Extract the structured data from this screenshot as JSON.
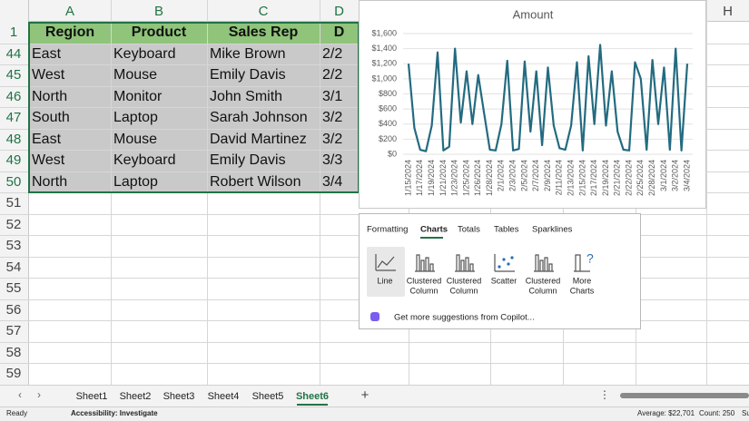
{
  "columns": [
    "A",
    "B",
    "C",
    "D",
    "H"
  ],
  "row_numbers": [
    "1",
    "44",
    "45",
    "46",
    "47",
    "48",
    "49",
    "50",
    "51",
    "52",
    "53",
    "54",
    "55",
    "56",
    "57",
    "58",
    "59"
  ],
  "table": {
    "header": [
      "Region",
      "Product",
      "Sales Rep",
      "D"
    ],
    "rows": [
      [
        "East",
        "Keyboard",
        "Mike Brown",
        "2/2"
      ],
      [
        "West",
        "Mouse",
        "Emily Davis",
        "2/2"
      ],
      [
        "North",
        "Monitor",
        "John Smith",
        "3/1"
      ],
      [
        "South",
        "Laptop",
        "Sarah Johnson",
        "3/2"
      ],
      [
        "East",
        "Mouse",
        "David Martinez",
        "3/2"
      ],
      [
        "West",
        "Keyboard",
        "Emily Davis",
        "3/3"
      ],
      [
        "North",
        "Laptop",
        "Robert Wilson",
        "3/4"
      ]
    ]
  },
  "chart": {
    "type": "line",
    "title": "Amount",
    "categories": [
      "1/15/2024",
      null,
      "1/17/2024",
      null,
      "1/19/2024",
      null,
      "1/21/2024",
      null,
      "1/23/2024",
      null,
      "1/25/2024",
      null,
      "1/26/2024",
      null,
      "1/28/2024",
      null,
      "2/1/2024",
      null,
      "2/3/2024",
      null,
      "2/5/2024",
      null,
      "2/7/2024",
      null,
      "2/9/2024",
      null,
      "2/11/2024",
      null,
      "2/13/2024",
      null,
      "2/15/2024",
      null,
      "2/17/2024",
      null,
      "2/19/2024",
      null,
      "2/21/2024",
      null,
      "2/22/2024",
      null,
      "2/25/2024",
      null,
      "2/28/2024",
      null,
      "3/1/2024",
      null,
      "3/2/2024",
      null,
      "3/4/2024"
    ],
    "values": [
      1200,
      350,
      60,
      40,
      380,
      1350,
      50,
      100,
      1400,
      420,
      1100,
      400,
      1050,
      550,
      60,
      50,
      400,
      1240,
      50,
      70,
      1230,
      300,
      1100,
      120,
      1150,
      380,
      80,
      60,
      380,
      1220,
      50,
      1300,
      400,
      1450,
      380,
      1100,
      300,
      60,
      50,
      1220,
      1000,
      60,
      1250,
      400,
      1150,
      60,
      1400,
      50,
      1200
    ],
    "color": "#236b80",
    "ylim": [
      0,
      1600
    ],
    "yticks": [
      {
        "value": 0,
        "label": "$0"
      },
      {
        "value": 200,
        "label": "$200"
      },
      {
        "value": 400,
        "label": "$400"
      },
      {
        "value": 600,
        "label": "$600"
      },
      {
        "value": 800,
        "label": "$800"
      },
      {
        "value": 1000,
        "label": "$1,000"
      },
      {
        "value": 1200,
        "label": "$1,200"
      },
      {
        "value": 1400,
        "label": "$1,400"
      },
      {
        "value": 1600,
        "label": "$1,600"
      }
    ],
    "grid": true
  },
  "quick_analysis": {
    "tabs": [
      "Formatting",
      "Charts",
      "Totals",
      "Tables",
      "Sparklines"
    ],
    "options": [
      [
        "Line"
      ],
      [
        "Clustered",
        "Column"
      ],
      [
        "Clustered",
        "Column"
      ],
      [
        "Scatter"
      ],
      [
        "Clustered",
        "Column"
      ],
      [
        "More",
        "Charts"
      ]
    ],
    "copilot": "Get more suggestions from Copilot..."
  },
  "sheet_tabs": [
    "Sheet1",
    "Sheet2",
    "Sheet3",
    "Sheet4",
    "Sheet5",
    "Sheet6"
  ],
  "status": {
    "ready": "Ready",
    "accessibility": "Accessibility: Investigate",
    "average": "Average: $22,701",
    "count": "Count: 250",
    "sum": "Su"
  }
}
